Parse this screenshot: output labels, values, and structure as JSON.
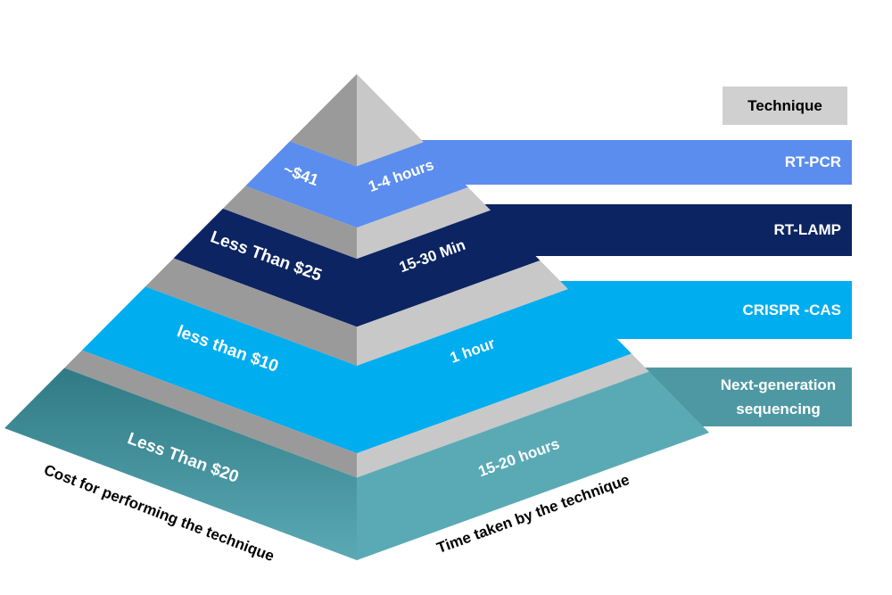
{
  "header": {
    "title": "Technique"
  },
  "layers": [
    {
      "technique": "RT-PCR",
      "cost": "~$41",
      "time": "1-4 hours"
    },
    {
      "technique": "RT-LAMP",
      "cost": "Less Than $25",
      "time": "15-30 Min"
    },
    {
      "technique": "CRISPR -CAS",
      "cost": "less than $10",
      "time": "1 hour"
    },
    {
      "technique": "Next-generation sequencing",
      "cost": "Less Than $20",
      "time": "15-20 hours"
    }
  ],
  "labels": {
    "cost_axis": "Cost for performing the technique",
    "time_axis": "Time taken by the technique"
  }
}
